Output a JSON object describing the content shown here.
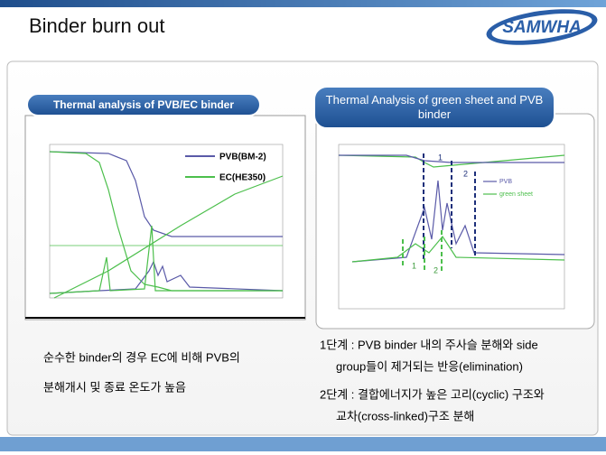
{
  "header": {
    "title": "Binder burn out",
    "logo": "SAMWHA"
  },
  "left_panel": {
    "label": "Thermal analysis of PVB/EC binder",
    "legend": [
      "PVB(BM-2)",
      "EC(HE350)"
    ],
    "caption": [
      "순수한 binder의 경우 EC에 비해 PVB의",
      "분해개시 및 종료 온도가 높음"
    ]
  },
  "right_panel": {
    "label": "Thermal Analysis of green sheet and PVB binder",
    "legend": [
      "PVB",
      "green sheet"
    ],
    "stage_marks": [
      "1",
      "2",
      "1",
      "2"
    ],
    "notes": [
      "1단계 : PVB binder 내의 주사슬 분해와 side",
      "group들이 제거되는 반응(elimination)",
      "2단계 : 결합에너지가 높은 고리(cyclic) 구조와",
      "교차(cross-linked)구조 분해"
    ]
  }
}
